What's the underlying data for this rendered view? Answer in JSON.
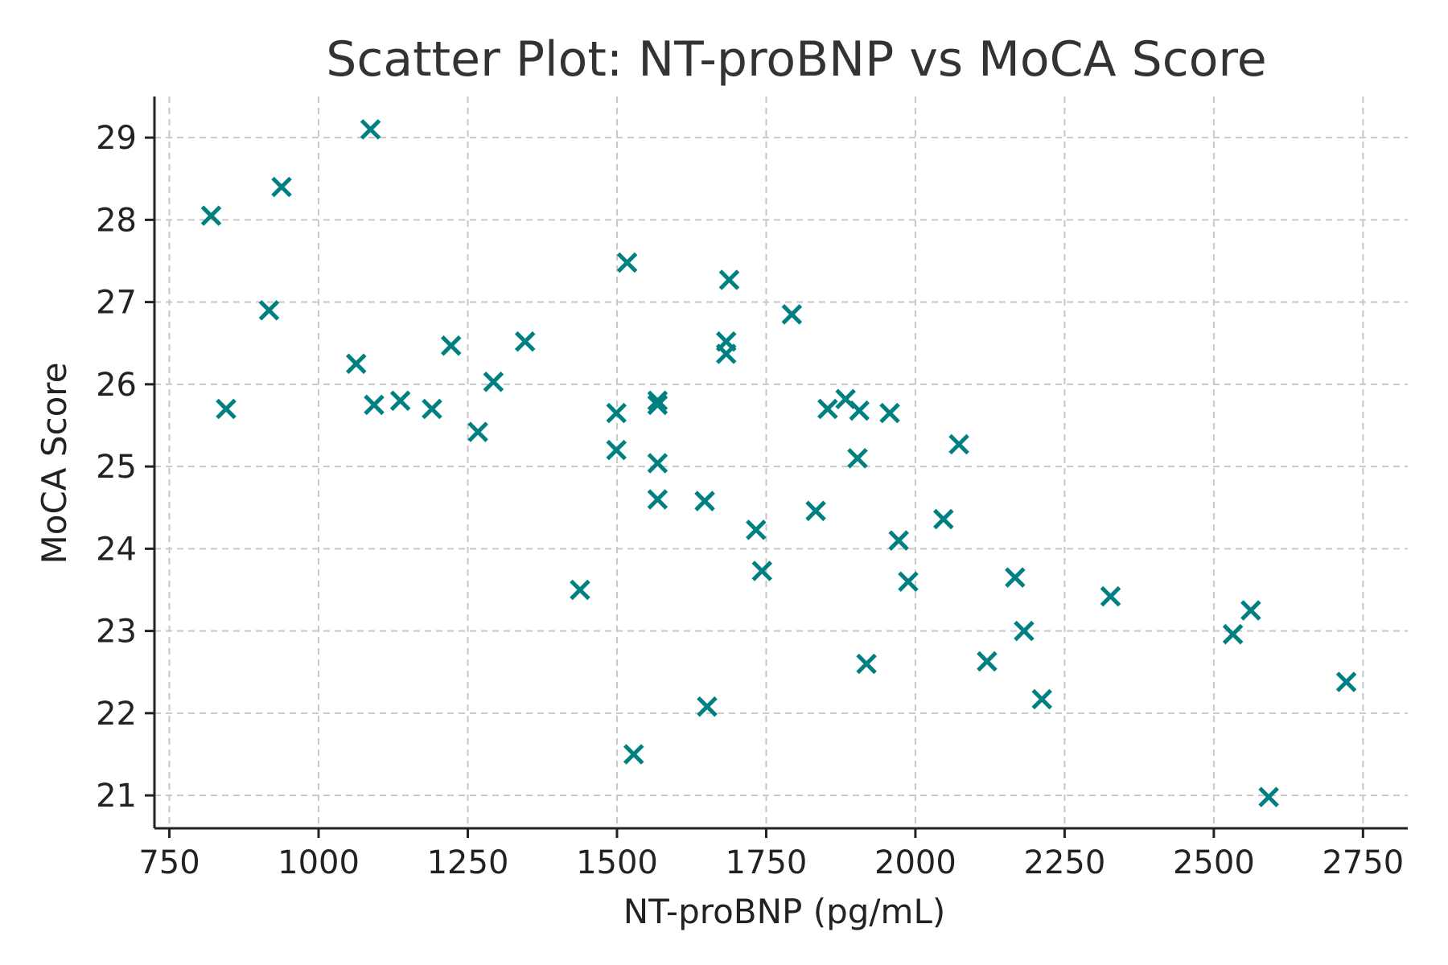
{
  "chart_data": {
    "type": "scatter",
    "title": "Scatter Plot: NT-proBNP vs MoCA Score",
    "xlabel": "NT-proBNP (pg/mL)",
    "ylabel": "MoCA Score",
    "xlim": [
      725,
      2825
    ],
    "ylim": [
      20.6,
      29.5
    ],
    "xticks": [
      750,
      1000,
      1250,
      1500,
      1750,
      2000,
      2250,
      2500,
      2750
    ],
    "yticks": [
      21,
      22,
      23,
      24,
      25,
      26,
      27,
      28,
      29
    ],
    "grid": true,
    "marker": "x",
    "color": "#008080",
    "series": [
      {
        "points": [
          [
            820,
            28.05
          ],
          [
            845,
            25.7
          ],
          [
            917,
            26.9
          ],
          [
            938,
            28.4
          ],
          [
            1063,
            26.25
          ],
          [
            1087,
            29.1
          ],
          [
            1093,
            25.75
          ],
          [
            1137,
            25.8
          ],
          [
            1190,
            25.7
          ],
          [
            1222,
            26.47
          ],
          [
            1267,
            25.42
          ],
          [
            1293,
            26.03
          ],
          [
            1346,
            26.52
          ],
          [
            1438,
            23.5
          ],
          [
            1499,
            25.65
          ],
          [
            1499,
            25.2
          ],
          [
            1517,
            27.48
          ],
          [
            1528,
            21.5
          ],
          [
            1568,
            25.8
          ],
          [
            1568,
            25.75
          ],
          [
            1568,
            25.04
          ],
          [
            1568,
            24.6
          ],
          [
            1647,
            24.58
          ],
          [
            1651,
            22.08
          ],
          [
            1683,
            26.52
          ],
          [
            1683,
            26.37
          ],
          [
            1688,
            27.27
          ],
          [
            1733,
            24.23
          ],
          [
            1743,
            23.73
          ],
          [
            1793,
            26.85
          ],
          [
            1833,
            24.46
          ],
          [
            1853,
            25.7
          ],
          [
            1883,
            25.82
          ],
          [
            1903,
            25.1
          ],
          [
            1906,
            25.68
          ],
          [
            1918,
            22.6
          ],
          [
            1957,
            25.65
          ],
          [
            1972,
            24.1
          ],
          [
            1988,
            23.6
          ],
          [
            2047,
            24.36
          ],
          [
            2073,
            25.27
          ],
          [
            2120,
            22.63
          ],
          [
            2167,
            23.65
          ],
          [
            2182,
            23.0
          ],
          [
            2212,
            22.17
          ],
          [
            2327,
            23.42
          ],
          [
            2532,
            22.96
          ],
          [
            2562,
            23.25
          ],
          [
            2592,
            20.98
          ],
          [
            2722,
            22.38
          ]
        ]
      }
    ]
  }
}
